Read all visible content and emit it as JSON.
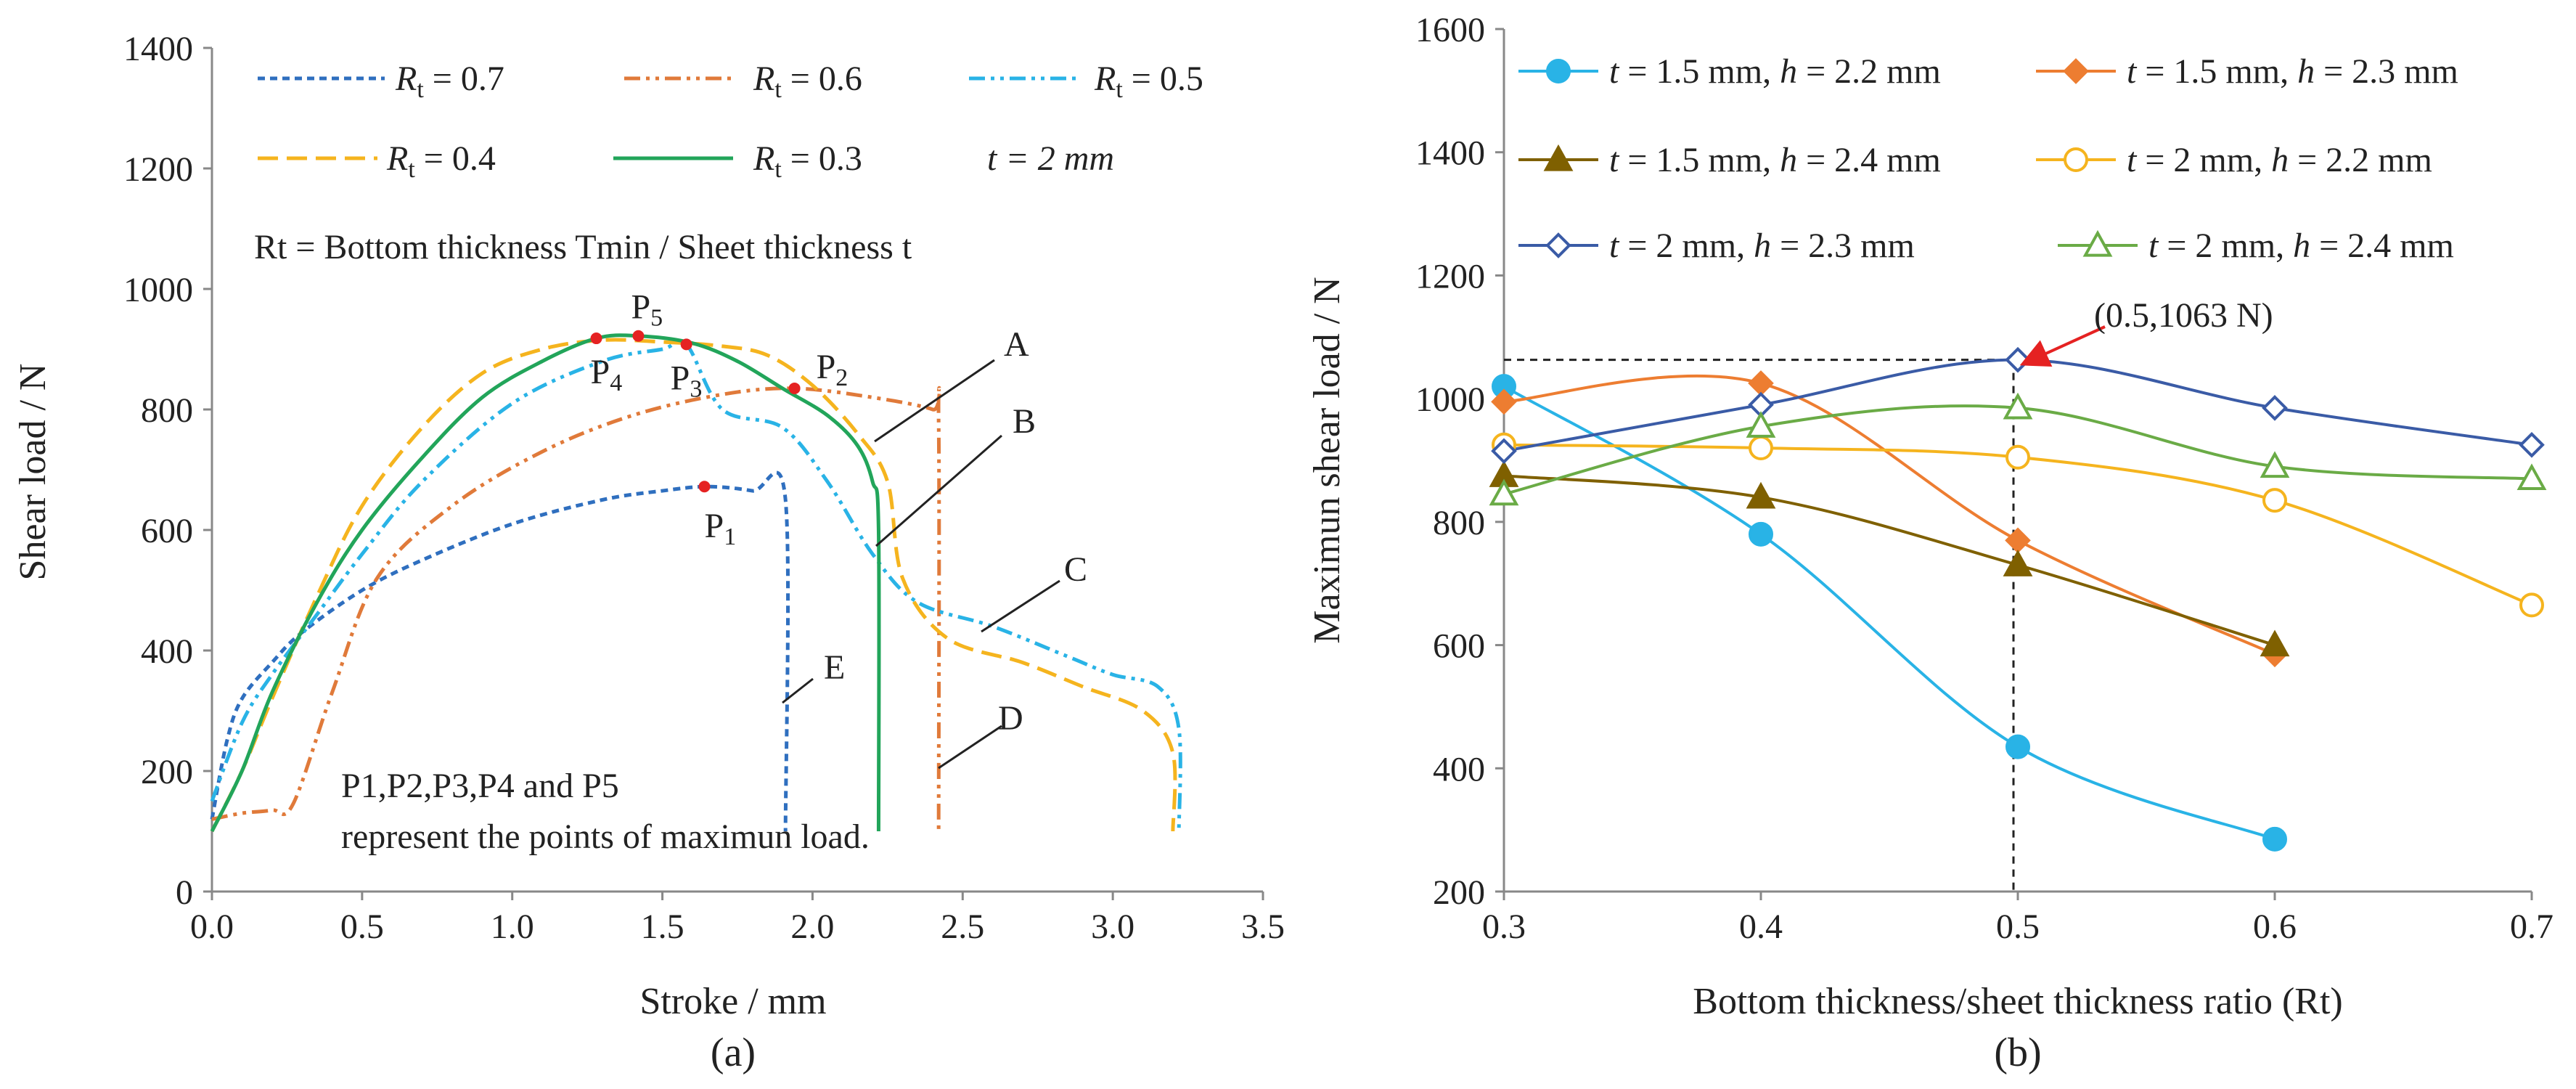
{
  "chart_data": [
    {
      "id": "a",
      "type": "line",
      "caption": "(a)",
      "xlabel": "Stroke / mm",
      "ylabel": "Shear load / N",
      "xlim": [
        0,
        3.5
      ],
      "ylim": [
        0,
        1400
      ],
      "xticks": [
        "0.0",
        "0.5",
        "1.0",
        "1.5",
        "2.0",
        "2.5",
        "3.0",
        "3.5"
      ],
      "yticks": [
        "0",
        "200",
        "400",
        "600",
        "800",
        "1000",
        "1200",
        "1400"
      ],
      "legend": {
        "entries": [
          {
            "name": "Rt = 0.7",
            "symbol": "R",
            "sub": "t",
            "rest": " = 0.7"
          },
          {
            "name": "Rt = 0.6",
            "symbol": "R",
            "sub": "t",
            "rest": " = 0.6"
          },
          {
            "name": "Rt = 0.5",
            "symbol": "R",
            "sub": "t",
            "rest": " = 0.5"
          },
          {
            "name": "Rt = 0.4",
            "symbol": "R",
            "sub": "t",
            "rest": " = 0.4"
          },
          {
            "name": "Rt = 0.3",
            "symbol": "R",
            "sub": "t",
            "rest": " = 0.3"
          }
        ],
        "note": "t = 2 mm",
        "definition": "Rt = Bottom thickness Tmin / Sheet thickness t"
      },
      "series": [
        {
          "name": "Rt = 0.7",
          "color": "#2f6fbf",
          "dash": "10,7",
          "x": [
            0.0,
            0.05,
            0.1,
            0.2,
            0.3,
            0.5,
            0.7,
            1.0,
            1.3,
            1.5,
            1.65,
            1.8,
            1.91,
            1.91
          ],
          "y": [
            120,
            250,
            320,
            380,
            430,
            500,
            550,
            610,
            650,
            665,
            672,
            665,
            650,
            100
          ]
        },
        {
          "name": "Rt = 0.6",
          "color": "#e07a3a",
          "dash": "22,8,5,8,5,8",
          "x": [
            0.0,
            0.1,
            0.2,
            0.27,
            0.4,
            0.55,
            0.8,
            1.1,
            1.4,
            1.7,
            1.94,
            2.2,
            2.4,
            2.42,
            2.42
          ],
          "y": [
            120,
            130,
            135,
            145,
            330,
            520,
            640,
            730,
            790,
            825,
            835,
            820,
            800,
            780,
            100
          ]
        },
        {
          "name": "Rt = 0.5",
          "color": "#29b3e6",
          "dash": "22,8,5,8,5,8",
          "x": [
            0.0,
            0.1,
            0.2,
            0.35,
            0.5,
            0.7,
            1.0,
            1.3,
            1.5,
            1.58,
            1.7,
            1.9,
            2.05,
            2.2,
            2.35,
            2.6,
            2.85,
            3.0,
            3.15,
            3.22,
            3.22
          ],
          "y": [
            150,
            280,
            360,
            460,
            560,
            680,
            810,
            880,
            900,
            908,
            800,
            770,
            680,
            560,
            480,
            440,
            390,
            360,
            340,
            270,
            100
          ]
        },
        {
          "name": "Rt = 0.4",
          "color": "#f5b41e",
          "dash": "28,12",
          "x": [
            0.0,
            0.1,
            0.2,
            0.35,
            0.5,
            0.7,
            0.9,
            1.1,
            1.3,
            1.5,
            1.7,
            1.85,
            2.0,
            2.15,
            2.25,
            2.3,
            2.45,
            2.7,
            2.9,
            3.1,
            3.2,
            3.2
          ],
          "y": [
            100,
            200,
            320,
            490,
            640,
            770,
            860,
            900,
            915,
            912,
            905,
            890,
            840,
            760,
            680,
            520,
            420,
            380,
            340,
            300,
            230,
            100
          ]
        },
        {
          "name": "Rt = 0.3",
          "color": "#22a55a",
          "dash": "",
          "x": [
            0.0,
            0.1,
            0.2,
            0.35,
            0.5,
            0.7,
            0.9,
            1.1,
            1.28,
            1.42,
            1.6,
            1.75,
            1.9,
            2.05,
            2.15,
            2.2,
            2.22,
            2.22
          ],
          "y": [
            100,
            200,
            330,
            480,
            600,
            720,
            820,
            880,
            918,
            922,
            910,
            880,
            835,
            790,
            740,
            680,
            600,
            100
          ]
        }
      ],
      "points": [
        {
          "label": "P",
          "sub": "1",
          "x": 1.64,
          "y": 672
        },
        {
          "label": "P",
          "sub": "2",
          "x": 1.94,
          "y": 835
        },
        {
          "label": "P",
          "sub": "3",
          "x": 1.58,
          "y": 908
        },
        {
          "label": "P",
          "sub": "4",
          "x": 1.28,
          "y": 918
        },
        {
          "label": "P",
          "sub": "5",
          "x": 1.42,
          "y": 922
        }
      ],
      "callouts": [
        "A",
        "B",
        "C",
        "D",
        "E"
      ],
      "points_note_line1": "P1,P2,P3,P4 and P5",
      "points_note_line2": "represent the points of maximun load."
    },
    {
      "id": "b",
      "type": "line",
      "caption": "(b)",
      "xlabel": "Bottom thickness/sheet thickness ratio (Rt)",
      "ylabel": "Maximun shear load  / N",
      "xlim": [
        0.3,
        0.7
      ],
      "ylim": [
        200,
        1600
      ],
      "xticks": [
        "0.3",
        "0.4",
        "0.5",
        "0.6",
        "0.7"
      ],
      "yticks": [
        "200",
        "400",
        "600",
        "800",
        "1000",
        "1200",
        "1400",
        "1600"
      ],
      "annotation": "(0.5,1063 N)",
      "annotation_point": {
        "x": 0.5,
        "y": 1063
      },
      "series": [
        {
          "name": "t = 1.5 mm, h = 2.2 mm",
          "t": "1.5 mm",
          "h": "2.2 mm",
          "color": "#29b3e6",
          "marker": "circle-filled",
          "x": [
            0.3,
            0.4,
            0.5,
            0.6
          ],
          "y": [
            1020,
            780,
            435,
            285
          ]
        },
        {
          "name": "t = 1.5 mm, h = 2.3 mm",
          "t": "1.5 mm",
          "h": "2.3 mm",
          "color": "#ed7d31",
          "marker": "diamond-filled",
          "x": [
            0.3,
            0.4,
            0.5,
            0.6
          ],
          "y": [
            995,
            1025,
            770,
            585
          ]
        },
        {
          "name": "t = 1.5 mm, h = 2.4 mm",
          "t": "1.5 mm",
          "h": "2.4 mm",
          "color": "#7f6000",
          "marker": "triangle-filled",
          "x": [
            0.3,
            0.4,
            0.5,
            0.6
          ],
          "y": [
            875,
            840,
            730,
            600
          ]
        },
        {
          "name": "t = 2 mm, h = 2.2 mm",
          "t": "2 mm",
          "h": "2.2 mm",
          "color": "#f5b41e",
          "marker": "circle-open",
          "x": [
            0.3,
            0.4,
            0.5,
            0.6,
            0.7
          ],
          "y": [
            925,
            920,
            905,
            835,
            665
          ]
        },
        {
          "name": "t = 2 mm, h = 2.3 mm",
          "t": "2 mm",
          "h": "2.3 mm",
          "color": "#3a5ba6",
          "marker": "diamond-open",
          "x": [
            0.3,
            0.4,
            0.5,
            0.6,
            0.7
          ],
          "y": [
            915,
            990,
            1063,
            985,
            925
          ]
        },
        {
          "name": "t = 2 mm, h = 2.4 mm",
          "t": "2 mm",
          "h": "2.4 mm",
          "color": "#6aab46",
          "marker": "triangle-open",
          "x": [
            0.3,
            0.4,
            0.5,
            0.6,
            0.7
          ],
          "y": [
            845,
            955,
            985,
            890,
            870
          ]
        }
      ]
    }
  ]
}
